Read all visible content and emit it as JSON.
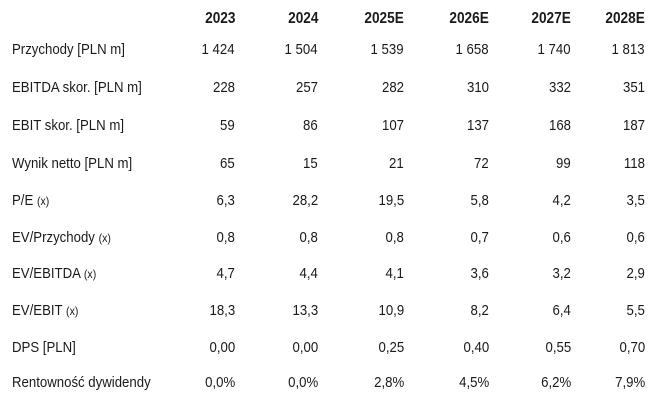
{
  "header": {
    "columns": [
      "2023",
      "2024",
      "2025E",
      "2026E",
      "2027E",
      "2028E"
    ]
  },
  "rows": [
    {
      "label": "Przychody [PLN m]",
      "unit": "",
      "values": [
        "1 424",
        "1 504",
        "1 539",
        "1 658",
        "1 740",
        "1 813"
      ]
    },
    {
      "label": "EBITDA skor. [PLN m]",
      "unit": "",
      "values": [
        "228",
        "257",
        "282",
        "310",
        "332",
        "351"
      ]
    },
    {
      "label": "EBIT skor. [PLN m]",
      "unit": "",
      "values": [
        "59",
        "86",
        "107",
        "137",
        "168",
        "187"
      ]
    },
    {
      "label": "Wynik netto [PLN m]",
      "unit": "",
      "values": [
        "65",
        "15",
        "21",
        "72",
        "99",
        "118"
      ]
    },
    {
      "label": "P/E",
      "unit": "(x)",
      "values": [
        "6,3",
        "28,2",
        "19,5",
        "5,8",
        "4,2",
        "3,5"
      ]
    },
    {
      "label": "EV/Przychody",
      "unit": "(x)",
      "values": [
        "0,8",
        "0,8",
        "0,8",
        "0,7",
        "0,6",
        "0,6"
      ]
    },
    {
      "label": "EV/EBITDA",
      "unit": "(x)",
      "values": [
        "4,7",
        "4,4",
        "4,1",
        "3,6",
        "3,2",
        "2,9"
      ]
    },
    {
      "label": "EV/EBIT",
      "unit": "(x)",
      "values": [
        "18,3",
        "13,3",
        "10,9",
        "8,2",
        "6,4",
        "5,5"
      ]
    },
    {
      "label": "DPS [PLN]",
      "unit": "",
      "values": [
        "0,00",
        "0,00",
        "0,25",
        "0,40",
        "0,55",
        "0,70"
      ]
    },
    {
      "label": "Rentowność dywidendy",
      "unit": "",
      "values": [
        "0,0%",
        "0,0%",
        "2,8%",
        "4,5%",
        "6,2%",
        "7,9%"
      ]
    }
  ]
}
